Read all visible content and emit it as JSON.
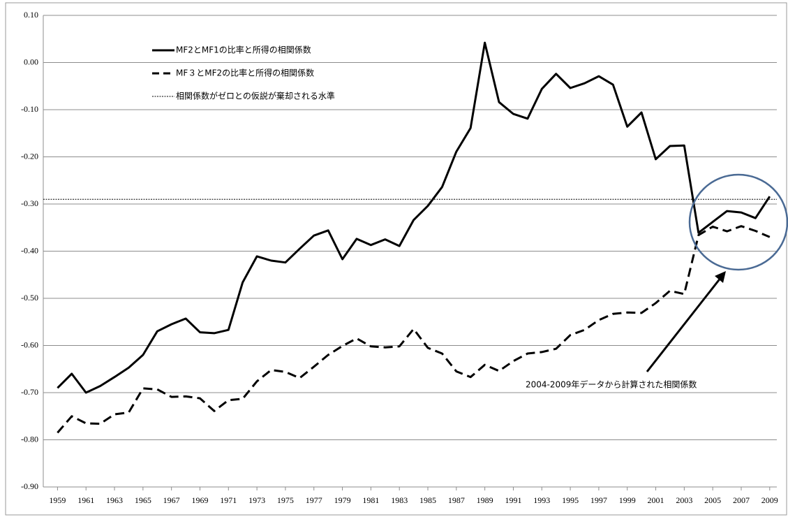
{
  "chart_data": {
    "type": "line",
    "x": [
      1959,
      1960,
      1961,
      1962,
      1963,
      1964,
      1965,
      1966,
      1967,
      1968,
      1969,
      1970,
      1971,
      1972,
      1973,
      1974,
      1975,
      1976,
      1977,
      1978,
      1979,
      1980,
      1981,
      1982,
      1983,
      1984,
      1985,
      1986,
      1987,
      1988,
      1989,
      1990,
      1991,
      1992,
      1993,
      1994,
      1995,
      1996,
      1997,
      1998,
      1999,
      2000,
      2001,
      2002,
      2003,
      2004,
      2005,
      2006,
      2007,
      2008,
      2009
    ],
    "series": [
      {
        "name": "MF2とMF1の比率と所得の相関係数",
        "color": "#000000",
        "dash": "solid",
        "values": [
          -0.69,
          -0.66,
          -0.7,
          -0.686,
          -0.667,
          -0.647,
          -0.62,
          -0.57,
          -0.555,
          -0.543,
          -0.572,
          -0.574,
          -0.567,
          -0.466,
          -0.411,
          -0.42,
          -0.424,
          -0.395,
          -0.367,
          -0.356,
          -0.417,
          -0.374,
          -0.387,
          -0.375,
          -0.389,
          -0.334,
          -0.304,
          -0.264,
          -0.189,
          -0.139,
          0.042,
          -0.084,
          -0.109,
          -0.119,
          -0.056,
          -0.024,
          -0.054,
          -0.044,
          -0.029,
          -0.047,
          -0.136,
          -0.106,
          -0.205,
          -0.177,
          -0.176,
          -0.361,
          -0.338,
          -0.315,
          -0.318,
          -0.33,
          -0.284
        ]
      },
      {
        "name": "MF３とMF2の比率と所得の相関係数",
        "color": "#000000",
        "dash": "dashed",
        "values": [
          -0.785,
          -0.75,
          -0.765,
          -0.766,
          -0.746,
          -0.742,
          -0.691,
          -0.693,
          -0.709,
          -0.708,
          -0.712,
          -0.739,
          -0.716,
          -0.713,
          -0.676,
          -0.652,
          -0.656,
          -0.669,
          -0.645,
          -0.62,
          -0.601,
          -0.585,
          -0.602,
          -0.604,
          -0.602,
          -0.565,
          -0.605,
          -0.617,
          -0.655,
          -0.667,
          -0.641,
          -0.654,
          -0.633,
          -0.617,
          -0.614,
          -0.607,
          -0.578,
          -0.567,
          -0.546,
          -0.533,
          -0.53,
          -0.531,
          -0.51,
          -0.484,
          -0.491,
          -0.366,
          -0.348,
          -0.358,
          -0.347,
          -0.357,
          -0.37
        ]
      }
    ],
    "reference_line": {
      "name": "相関係数がゼロとの仮説が棄却される水準",
      "value": -0.29,
      "color": "#000000"
    },
    "annotation": "2004-2009年データから計算された相関係数",
    "xlim": [
      1958,
      2009.5
    ],
    "xticks": [
      1959,
      1961,
      1963,
      1965,
      1967,
      1969,
      1971,
      1973,
      1975,
      1977,
      1979,
      1981,
      1983,
      1985,
      1987,
      1989,
      1991,
      1993,
      1995,
      1997,
      1999,
      2001,
      2003,
      2005,
      2007,
      2009
    ],
    "ylim": [
      -0.9,
      0.1
    ],
    "yticks": [
      {
        "value": 0.1,
        "label": "0.10"
      },
      {
        "value": 0,
        "label": "0.00"
      },
      {
        "value": -0.1,
        "label": "-0.10"
      },
      {
        "value": -0.2,
        "label": "-0.20"
      },
      {
        "value": -0.3,
        "label": "-0.30"
      },
      {
        "value": -0.4,
        "label": "-0.40"
      },
      {
        "value": -0.5,
        "label": "-0.50"
      },
      {
        "value": -0.6,
        "label": "-0.60"
      },
      {
        "value": -0.7,
        "label": "-0.70"
      },
      {
        "value": -0.8,
        "label": "-0.80"
      },
      {
        "value": -0.9,
        "label": "-0.90"
      }
    ],
    "grid": true,
    "legend": "upper left"
  }
}
